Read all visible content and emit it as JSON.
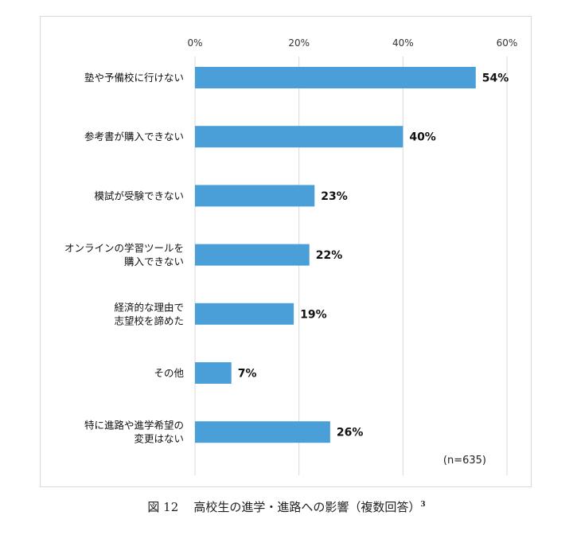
{
  "chart_data": {
    "type": "bar",
    "orientation": "horizontal",
    "categories": [
      [
        "塾や予備校に行けない"
      ],
      [
        "参考書が購入できない"
      ],
      [
        "模試が受験できない"
      ],
      [
        "オンラインの学習ツールを",
        "購入できない"
      ],
      [
        "経済的な理由で",
        "志望校を諦めた"
      ],
      [
        "その他"
      ],
      [
        "特に進路や進学希望の",
        "変更はない"
      ]
    ],
    "values": [
      54,
      40,
      23,
      22,
      19,
      7,
      26
    ],
    "value_labels": [
      "54%",
      "40%",
      "23%",
      "22%",
      "19%",
      "7%",
      "26%"
    ],
    "xlim": [
      0,
      60
    ],
    "x_ticks": [
      0,
      20,
      40,
      60
    ],
    "x_tick_labels": [
      "0%",
      "20%",
      "40%",
      "60%"
    ],
    "x_axis_position": "top",
    "grid": true,
    "bar_color": "#4A9FD8",
    "grid_color": "#d9d9d9",
    "note": "(n=635)"
  },
  "caption": {
    "figure_label": "図 12",
    "title": "高校生の進学・進路への影響（複数回答）",
    "footnote_ref": "3"
  }
}
